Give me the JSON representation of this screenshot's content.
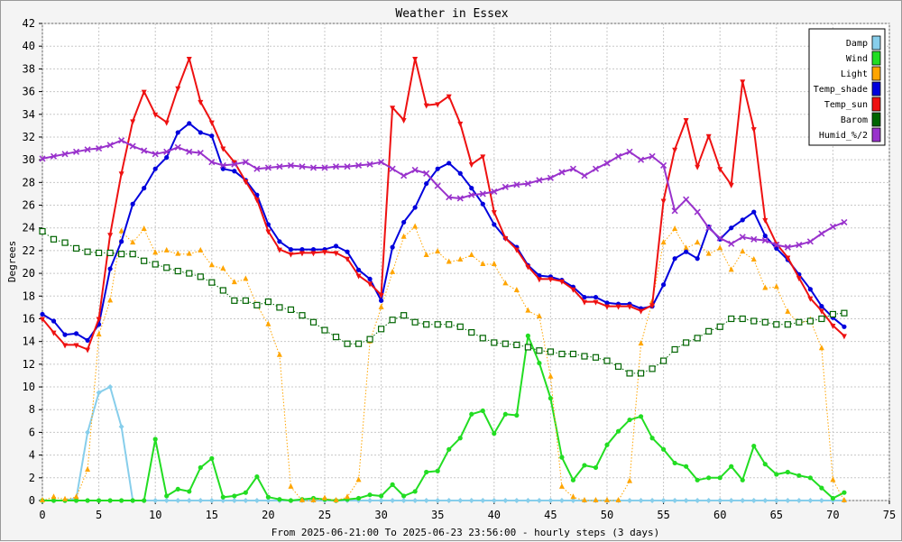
{
  "chart_data": {
    "type": "line",
    "title": "Weather in Essex",
    "xlabel": "From 2025-06-21:00 To 2025-06-23 23:56:00 - hourly steps (3 days)",
    "ylabel": "Degrees",
    "xlim": [
      0,
      75
    ],
    "ylim": [
      0,
      42
    ],
    "xticks": [
      0,
      5,
      10,
      15,
      20,
      25,
      30,
      35,
      40,
      45,
      50,
      55,
      60,
      65,
      70,
      75
    ],
    "yticks": [
      0,
      2,
      4,
      6,
      8,
      10,
      12,
      14,
      16,
      18,
      20,
      22,
      24,
      26,
      28,
      30,
      32,
      34,
      36,
      38,
      40,
      42
    ],
    "grid": true,
    "legend_position": "top-right",
    "series": [
      {
        "name": "Damp",
        "color": "#87ceeb",
        "style": "solid",
        "marker": "diamond",
        "x": [
          0,
          1,
          2,
          3,
          4,
          5,
          6,
          7,
          8,
          9,
          10,
          11,
          12,
          13,
          14,
          15,
          16,
          17,
          18,
          19,
          20,
          21,
          22,
          23,
          24,
          25,
          26,
          27,
          28,
          29,
          30,
          31,
          32,
          33,
          34,
          35,
          36,
          37,
          38,
          39,
          40,
          41,
          42,
          43,
          44,
          45,
          46,
          47,
          48,
          49,
          50,
          51,
          52,
          53,
          54,
          55,
          56,
          57,
          58,
          59,
          60,
          61,
          62,
          63,
          64,
          65,
          66,
          67,
          68,
          69,
          70,
          71
        ],
        "y": [
          0,
          0,
          0,
          0.2,
          6,
          9.5,
          10,
          6.5,
          0,
          0,
          0,
          0,
          0,
          0,
          0,
          0,
          0,
          0,
          0,
          0,
          0,
          0,
          0,
          0,
          0,
          0,
          0,
          0,
          0,
          0,
          0,
          0,
          0,
          0,
          0,
          0,
          0,
          0,
          0,
          0,
          0,
          0,
          0,
          0,
          0,
          0,
          0,
          0,
          0,
          0,
          0,
          0,
          0,
          0,
          0,
          0,
          0,
          0,
          0,
          0,
          0,
          0,
          0,
          0,
          0,
          0,
          0,
          0,
          0,
          0,
          0,
          0
        ]
      },
      {
        "name": "Wind",
        "color": "#22dd22",
        "style": "solid",
        "marker": "circle",
        "x": [
          0,
          1,
          2,
          3,
          4,
          5,
          6,
          7,
          8,
          9,
          10,
          11,
          12,
          13,
          14,
          15,
          16,
          17,
          18,
          19,
          20,
          21,
          22,
          23,
          24,
          25,
          26,
          27,
          28,
          29,
          30,
          31,
          32,
          33,
          34,
          35,
          36,
          37,
          38,
          39,
          40,
          41,
          42,
          43,
          44,
          45,
          46,
          47,
          48,
          49,
          50,
          51,
          52,
          53,
          54,
          55,
          56,
          57,
          58,
          59,
          60,
          61,
          62,
          63,
          64,
          65,
          66,
          67,
          68,
          69,
          70,
          71
        ],
        "y": [
          0,
          0,
          0,
          0,
          0,
          0,
          0,
          0,
          0,
          0,
          5.4,
          0.4,
          1,
          0.8,
          2.9,
          3.7,
          0.3,
          0.4,
          0.7,
          2.1,
          0.3,
          0.1,
          0,
          0.1,
          0.2,
          0.1,
          0,
          0.1,
          0.2,
          0.5,
          0.4,
          1.4,
          0.4,
          0.8,
          2.5,
          2.6,
          4.5,
          5.5,
          7.6,
          7.9,
          5.9,
          7.6,
          7.5,
          14.5,
          12.1,
          9,
          3.8,
          1.8,
          3.1,
          2.9,
          4.9,
          6.1,
          7.1,
          7.4,
          5.5,
          4.5,
          3.3,
          3,
          1.8,
          2,
          2,
          3,
          1.8,
          4.8,
          3.2,
          2.3,
          2.5,
          2.2,
          2,
          1.1,
          0.2,
          0.7
        ]
      },
      {
        "name": "Light",
        "color": "#ffa500",
        "style": "dotted",
        "marker": "triangle",
        "x": [
          0,
          1,
          2,
          3,
          4,
          5,
          6,
          7,
          8,
          9,
          10,
          11,
          12,
          13,
          14,
          15,
          16,
          17,
          18,
          19,
          20,
          21,
          22,
          23,
          24,
          25,
          26,
          27,
          28,
          29,
          30,
          31,
          32,
          33,
          34,
          35,
          36,
          37,
          38,
          39,
          40,
          41,
          42,
          43,
          44,
          45,
          46,
          47,
          48,
          49,
          50,
          51,
          52,
          53,
          54,
          55,
          56,
          57,
          58,
          59,
          60,
          61,
          62,
          63,
          64,
          65,
          66,
          67,
          68,
          69,
          70,
          71
        ],
        "y": [
          0,
          0.3,
          0.1,
          0.3,
          2.7,
          14.6,
          17.6,
          23.7,
          22.7,
          23.9,
          21.8,
          22,
          21.7,
          21.7,
          22,
          20.7,
          20.4,
          19.2,
          19.5,
          17.2,
          15.5,
          12.8,
          1.2,
          0,
          0,
          0.2,
          0,
          0.3,
          1.8,
          14,
          17,
          20.1,
          23.2,
          24.1,
          21.6,
          21.9,
          21,
          21.2,
          21.6,
          20.8,
          20.8,
          19.1,
          18.5,
          16.7,
          16.2,
          10.9,
          1.2,
          0.3,
          0,
          0,
          0,
          0,
          1.7,
          13.8,
          17.5,
          22.7,
          23.9,
          22.2,
          22.7,
          21.7,
          22.2,
          20.3,
          21.9,
          21.2,
          18.7,
          18.8,
          16.6,
          15.6,
          15.9,
          13.4,
          1.8,
          0
        ]
      },
      {
        "name": "Temp_shade",
        "color": "#0000dd",
        "style": "solid",
        "marker": "circle",
        "x": [
          0,
          1,
          2,
          3,
          4,
          5,
          6,
          7,
          8,
          9,
          10,
          11,
          12,
          13,
          14,
          15,
          16,
          17,
          18,
          19,
          20,
          21,
          22,
          23,
          24,
          25,
          26,
          27,
          28,
          29,
          30,
          31,
          32,
          33,
          34,
          35,
          36,
          37,
          38,
          39,
          40,
          41,
          42,
          43,
          44,
          45,
          46,
          47,
          48,
          49,
          50,
          51,
          52,
          53,
          54,
          55,
          56,
          57,
          58,
          59,
          60,
          61,
          62,
          63,
          64,
          65,
          66,
          67,
          68,
          69,
          70,
          71
        ],
        "y": [
          16.4,
          15.8,
          14.6,
          14.7,
          14.1,
          15.5,
          20.4,
          22.8,
          26.1,
          27.5,
          29.2,
          30.2,
          32.4,
          33.2,
          32.4,
          32.1,
          29.2,
          29,
          28.2,
          26.9,
          24.3,
          22.8,
          22.1,
          22.1,
          22.1,
          22.1,
          22.4,
          21.9,
          20.3,
          19.5,
          17.6,
          22.3,
          24.5,
          25.8,
          27.9,
          29.2,
          29.7,
          28.8,
          27.5,
          26.1,
          24.3,
          23.1,
          22.3,
          20.7,
          19.8,
          19.7,
          19.4,
          18.8,
          17.9,
          17.9,
          17.4,
          17.3,
          17.3,
          16.9,
          17.1,
          19,
          21.3,
          21.9,
          21.3,
          24.1,
          23,
          24,
          24.7,
          25.4,
          23.3,
          22.2,
          21.2,
          19.9,
          18.6,
          17.1,
          16.1,
          15.3
        ]
      },
      {
        "name": "Temp_sun",
        "color": "#ee1111",
        "style": "solid",
        "marker": "triangle-down",
        "x": [
          0,
          1,
          2,
          3,
          4,
          5,
          6,
          7,
          8,
          9,
          10,
          11,
          12,
          13,
          14,
          15,
          16,
          17,
          18,
          19,
          20,
          21,
          22,
          23,
          24,
          25,
          26,
          27,
          28,
          29,
          30,
          31,
          32,
          33,
          34,
          35,
          36,
          37,
          38,
          39,
          40,
          41,
          42,
          43,
          44,
          45,
          46,
          47,
          48,
          49,
          50,
          51,
          52,
          53,
          54,
          55,
          56,
          57,
          58,
          59,
          60,
          61,
          62,
          63,
          64,
          65,
          66,
          67,
          68,
          69,
          70,
          71
        ],
        "y": [
          16,
          14.8,
          13.7,
          13.7,
          13.3,
          16,
          23.4,
          28.8,
          33.4,
          36,
          34,
          33.3,
          36.3,
          38.9,
          35.1,
          33.3,
          31,
          29.8,
          28.1,
          26.5,
          23.7,
          22.1,
          21.7,
          21.8,
          21.8,
          21.9,
          21.8,
          21.3,
          19.8,
          19.1,
          18.1,
          34.6,
          33.5,
          38.9,
          34.8,
          34.9,
          35.6,
          33.2,
          29.6,
          30.3,
          25.4,
          23.1,
          22.1,
          20.6,
          19.5,
          19.5,
          19.3,
          18.6,
          17.5,
          17.5,
          17.1,
          17.1,
          17.1,
          16.7,
          17.2,
          26.4,
          30.9,
          33.5,
          29.4,
          32.1,
          29.2,
          27.8,
          36.9,
          32.7,
          24.7,
          22.6,
          21.4,
          19.6,
          17.8,
          16.7,
          15.4,
          14.5
        ]
      },
      {
        "name": "Barom",
        "color": "#006400",
        "style": "dotted",
        "marker": "square",
        "x": [
          0,
          1,
          2,
          3,
          4,
          5,
          6,
          7,
          8,
          9,
          10,
          11,
          12,
          13,
          14,
          15,
          16,
          17,
          18,
          19,
          20,
          21,
          22,
          23,
          24,
          25,
          26,
          27,
          28,
          29,
          30,
          31,
          32,
          33,
          34,
          35,
          36,
          37,
          38,
          39,
          40,
          41,
          42,
          43,
          44,
          45,
          46,
          47,
          48,
          49,
          50,
          51,
          52,
          53,
          54,
          55,
          56,
          57,
          58,
          59,
          60,
          61,
          62,
          63,
          64,
          65,
          66,
          67,
          68,
          69,
          70,
          71
        ],
        "y": [
          23.7,
          23,
          22.7,
          22.2,
          21.9,
          21.8,
          21.8,
          21.7,
          21.7,
          21.1,
          20.8,
          20.5,
          20.2,
          20,
          19.7,
          19.2,
          18.5,
          17.6,
          17.6,
          17.2,
          17.5,
          17,
          16.8,
          16.3,
          15.7,
          15,
          14.4,
          13.8,
          13.8,
          14.2,
          15.1,
          15.9,
          16.3,
          15.7,
          15.5,
          15.5,
          15.5,
          15.3,
          14.8,
          14.3,
          13.9,
          13.8,
          13.7,
          13.5,
          13.2,
          13.1,
          12.9,
          12.9,
          12.7,
          12.6,
          12.3,
          11.8,
          11.2,
          11.2,
          11.6,
          12.3,
          13.3,
          13.9,
          14.3,
          14.9,
          15.3,
          16,
          16,
          15.8,
          15.7,
          15.5,
          15.5,
          15.7,
          15.8,
          16,
          16.4,
          16.5
        ]
      },
      {
        "name": "Humid_%/2",
        "color": "#9932cc",
        "style": "solid",
        "marker": "x",
        "x": [
          0,
          1,
          2,
          3,
          4,
          5,
          6,
          7,
          8,
          9,
          10,
          11,
          12,
          13,
          14,
          15,
          16,
          17,
          18,
          19,
          20,
          21,
          22,
          23,
          24,
          25,
          26,
          27,
          28,
          29,
          30,
          31,
          32,
          33,
          34,
          35,
          36,
          37,
          38,
          39,
          40,
          41,
          42,
          43,
          44,
          45,
          46,
          47,
          48,
          49,
          50,
          51,
          52,
          53,
          54,
          55,
          56,
          57,
          58,
          59,
          60,
          61,
          62,
          63,
          64,
          65,
          66,
          67,
          68,
          69,
          70,
          71
        ],
        "y": [
          30.1,
          30.3,
          30.5,
          30.7,
          30.9,
          31,
          31.3,
          31.7,
          31.2,
          30.8,
          30.5,
          30.7,
          31.1,
          30.7,
          30.6,
          29.8,
          29.5,
          29.6,
          29.8,
          29.2,
          29.3,
          29.4,
          29.5,
          29.4,
          29.3,
          29.3,
          29.4,
          29.4,
          29.5,
          29.6,
          29.8,
          29.2,
          28.6,
          29.1,
          28.8,
          27.7,
          26.7,
          26.6,
          26.9,
          27,
          27.2,
          27.6,
          27.8,
          27.9,
          28.2,
          28.4,
          28.9,
          29.2,
          28.6,
          29.2,
          29.7,
          30.3,
          30.7,
          30,
          30.3,
          29.5,
          25.5,
          26.5,
          25.4,
          24,
          23.1,
          22.6,
          23.2,
          23,
          22.9,
          22.5,
          22.3,
          22.5,
          22.8,
          23.5,
          24.1,
          24.5
        ]
      }
    ]
  }
}
